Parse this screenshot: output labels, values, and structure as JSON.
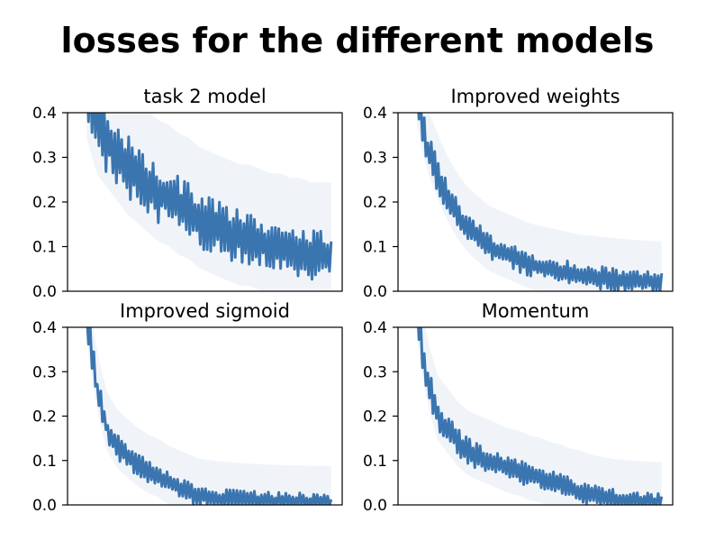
{
  "figure": {
    "suptitle": "losses for the different models"
  },
  "chart_data": [
    {
      "type": "line",
      "title": "task 2 model",
      "xlabel": "",
      "ylabel": "",
      "ylim": [
        0,
        0.4
      ],
      "yticks": [
        "0.0",
        "0.1",
        "0.2",
        "0.3",
        "0.4"
      ],
      "xticks": [],
      "grid": false,
      "color": "#3a75b0",
      "series": [
        {
          "values": [
            0.45,
            0.37,
            0.34,
            0.31,
            0.28,
            0.26,
            0.24,
            0.22,
            0.21,
            0.19,
            0.18,
            0.16,
            0.15,
            0.14,
            0.13,
            0.12,
            0.12,
            0.11,
            0.1,
            0.1,
            0.09,
            0.09,
            0.08,
            0.08,
            0.08
          ],
          "band": 0.09
        }
      ]
    },
    {
      "type": "line",
      "title": "Improved weights",
      "xlabel": "",
      "ylabel": "",
      "ylim": [
        0,
        0.4
      ],
      "yticks": [
        "0.0",
        "0.1",
        "0.2",
        "0.3",
        "0.4"
      ],
      "xticks": [],
      "grid": false,
      "color": "#3a75b0",
      "series": [
        {
          "values": [
            0.42,
            0.32,
            0.26,
            0.21,
            0.17,
            0.14,
            0.12,
            0.1,
            0.09,
            0.08,
            0.07,
            0.06,
            0.055,
            0.05,
            0.045,
            0.04,
            0.035,
            0.033,
            0.03,
            0.028,
            0.026,
            0.024,
            0.022,
            0.021,
            0.02
          ],
          "band": 0.045
        }
      ]
    },
    {
      "type": "line",
      "title": "Improved sigmoid",
      "xlabel": "",
      "ylabel": "",
      "ylim": [
        0,
        0.4
      ],
      "yticks": [
        "0.0",
        "0.1",
        "0.2",
        "0.3",
        "0.4"
      ],
      "xticks": [],
      "grid": false,
      "color": "#3a75b0",
      "series": [
        {
          "values": [
            0.42,
            0.26,
            0.17,
            0.13,
            0.11,
            0.09,
            0.075,
            0.065,
            0.05,
            0.04,
            0.03,
            0.02,
            0.017,
            0.014,
            0.012,
            0.01,
            0.009,
            0.008,
            0.007,
            0.006,
            0.005,
            0.005,
            0.004,
            0.004,
            0.004
          ],
          "band": 0.04
        }
      ]
    },
    {
      "type": "line",
      "title": "Momentum",
      "xlabel": "",
      "ylabel": "",
      "ylim": [
        0,
        0.4
      ],
      "yticks": [
        "0.0",
        "0.1",
        "0.2",
        "0.3",
        "0.4"
      ],
      "xticks": [],
      "grid": false,
      "color": "#3a75b0",
      "series": [
        {
          "values": [
            0.42,
            0.28,
            0.2,
            0.17,
            0.14,
            0.12,
            0.11,
            0.1,
            0.09,
            0.08,
            0.075,
            0.065,
            0.06,
            0.05,
            0.045,
            0.035,
            0.03,
            0.022,
            0.017,
            0.012,
            0.01,
            0.008,
            0.006,
            0.005,
            0.004
          ],
          "band": 0.045
        }
      ]
    }
  ]
}
